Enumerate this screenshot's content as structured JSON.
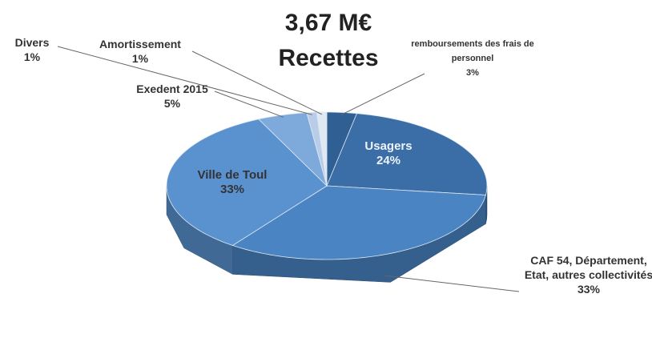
{
  "chart_data": {
    "type": "pie",
    "title": "3,67 M€",
    "subtitle": "Recettes",
    "categories": [
      "remboursements des frais de personnel",
      "Usagers",
      "CAF 54, Département, Etat, autres collectivités",
      "Ville de Toul",
      "Exedent 2015",
      "Divers",
      "Amortissement"
    ],
    "values": [
      3,
      24,
      33,
      33,
      5,
      1,
      1
    ],
    "value_labels": [
      "3%",
      "24%",
      "33%",
      "33%",
      "5%",
      "1%",
      "1%"
    ],
    "colors": [
      "#2f5f93",
      "#3b6ea6",
      "#4a84c2",
      "#5a92cf",
      "#7eaadb",
      "#b9cde8",
      "#e0e8f3"
    ]
  }
}
